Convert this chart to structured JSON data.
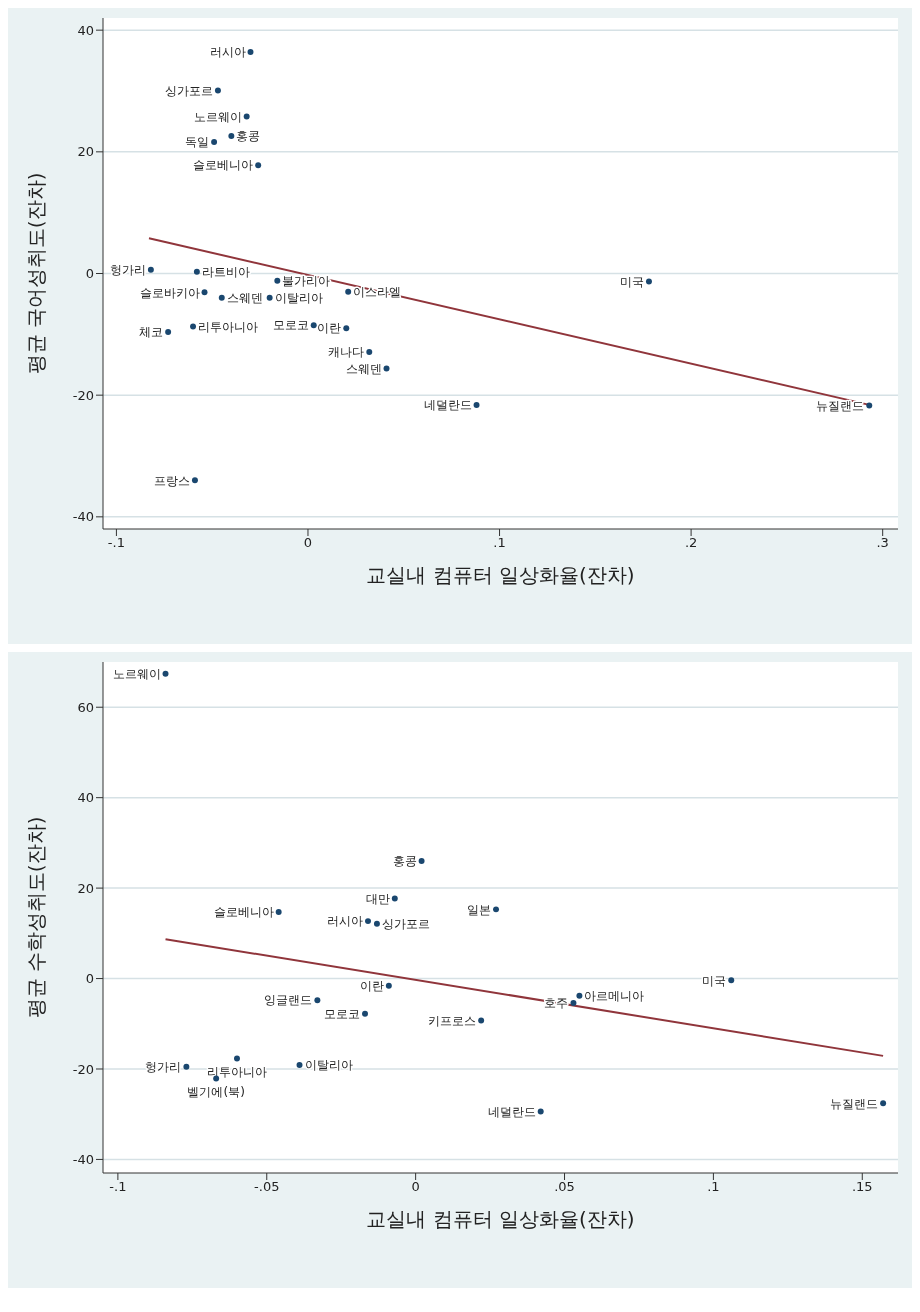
{
  "chart_data": [
    {
      "type": "scatter",
      "xlabel": "교실내 컴퓨터 일상화율(잔차)",
      "ylabel": "평균 국어성취도(잔차)",
      "xlim": [
        -0.107,
        0.308
      ],
      "ylim": [
        -42,
        42
      ],
      "xticks": [
        {
          "value": -0.1,
          "label": "-.1"
        },
        0,
        {
          "value": 0.1,
          "label": ".1"
        },
        {
          "value": 0.2,
          "label": ".2"
        },
        {
          "value": 0.3,
          "label": ".3"
        }
      ],
      "yticks": [
        -40,
        -20,
        0,
        20,
        40
      ],
      "grid": "y",
      "series": [
        {
          "marker": "circle",
          "color": "#1a476f",
          "x": [
            -0.03,
            -0.047,
            -0.032,
            -0.049,
            -0.04,
            -0.026,
            -0.082,
            -0.058,
            -0.016,
            -0.054,
            -0.045,
            -0.02,
            0.021,
            -0.06,
            -0.073,
            0.003,
            0.02,
            0.032,
            0.041,
            0.088,
            0.293,
            0.178,
            -0.059
          ],
          "values": [
            36.4,
            30.1,
            25.8,
            21.6,
            22.6,
            17.8,
            0.6,
            0.3,
            -1.2,
            -3.1,
            -4.0,
            -4.0,
            -3.0,
            -8.7,
            -9.6,
            -8.5,
            -9.0,
            -12.9,
            -15.6,
            -21.6,
            -21.7,
            -1.3,
            -34.0
          ]
        },
        {
          "type": "line",
          "marker": "none",
          "color": "#90353b",
          "x": [
            -0.083,
            0.293
          ],
          "values": [
            5.8,
            -21.6
          ]
        }
      ],
      "annotations": [
        {
          "text": "러시아",
          "x": -0.03,
          "y": 36.4
        },
        {
          "text": "싱가포르",
          "x": -0.047,
          "y": 30.1
        },
        {
          "text": "노르웨이",
          "x": -0.032,
          "y": 25.8
        },
        {
          "text": "독일",
          "x": -0.049,
          "y": 21.6
        },
        {
          "text": "홍콩",
          "x": -0.04,
          "y": 22.6
        },
        {
          "text": "슬로베니아",
          "x": -0.026,
          "y": 17.8
        },
        {
          "text": "헝가리",
          "x": -0.082,
          "y": 0.6
        },
        {
          "text": "라트비아",
          "x": -0.058,
          "y": 0.3
        },
        {
          "text": "불가리아",
          "x": -0.016,
          "y": -1.2
        },
        {
          "text": "슬로바키아",
          "x": -0.054,
          "y": -3.1
        },
        {
          "text": "스웨덴",
          "x": -0.045,
          "y": -4.0
        },
        {
          "text": "이탈리아",
          "x": -0.02,
          "y": -4.0
        },
        {
          "text": "이스라엘",
          "x": 0.021,
          "y": -3.0
        },
        {
          "text": "리투아니아",
          "x": -0.06,
          "y": -8.7
        },
        {
          "text": "체코",
          "x": -0.073,
          "y": -9.6
        },
        {
          "text": "모로코",
          "x": 0.003,
          "y": -8.5
        },
        {
          "text": "이란",
          "x": 0.02,
          "y": -9.0
        },
        {
          "text": "캐나다",
          "x": 0.032,
          "y": -12.9
        },
        {
          "text": "스웨덴",
          "x": 0.041,
          "y": -15.6
        },
        {
          "text": "네덜란드",
          "x": 0.088,
          "y": -21.6
        },
        {
          "text": "뉴질랜드",
          "x": 0.293,
          "y": -21.7
        },
        {
          "text": "미국",
          "x": 0.178,
          "y": -1.3
        },
        {
          "text": "프랑스",
          "x": -0.059,
          "y": -34.0
        }
      ]
    },
    {
      "type": "scatter",
      "xlabel": "교실내 컴퓨터 일상화율(잔차)",
      "ylabel": "평균 수학성취도(잔차)",
      "xlim": [
        -0.105,
        0.162
      ],
      "ylim": [
        -43,
        70
      ],
      "xticks": [
        {
          "value": -0.1,
          "label": "-.1"
        },
        {
          "value": -0.05,
          "label": "-.05"
        },
        0,
        {
          "value": 0.05,
          "label": ".05"
        },
        {
          "value": 0.1,
          "label": ".1"
        },
        {
          "value": 0.15,
          "label": ".15"
        }
      ],
      "yticks": [
        -40,
        -20,
        0,
        20,
        40,
        60
      ],
      "grid": "y",
      "series": [
        {
          "marker": "circle",
          "color": "#1a476f",
          "x": [
            -0.084,
            0.002,
            -0.007,
            -0.046,
            -0.016,
            -0.013,
            0.027,
            0.106,
            -0.009,
            0.055,
            0.053,
            -0.033,
            -0.017,
            0.022,
            -0.06,
            -0.039,
            -0.077,
            -0.067,
            0.042,
            0.157
          ],
          "values": [
            67.4,
            26.0,
            17.7,
            14.7,
            12.7,
            12.1,
            15.3,
            -0.4,
            -1.6,
            -3.8,
            -5.4,
            -4.8,
            -7.8,
            -9.3,
            -17.7,
            -19.1,
            -19.5,
            -22.1,
            -29.4,
            -27.6
          ]
        },
        {
          "type": "line",
          "marker": "none",
          "color": "#90353b",
          "x": [
            -0.084,
            0.157
          ],
          "values": [
            8.7,
            -17.1
          ]
        }
      ],
      "annotations": [
        {
          "text": "노르웨이",
          "x": -0.084,
          "y": 67.4
        },
        {
          "text": "홍콩",
          "x": 0.002,
          "y": 26.0
        },
        {
          "text": "대만",
          "x": -0.007,
          "y": 17.7
        },
        {
          "text": "슬로베니아",
          "x": -0.046,
          "y": 14.7
        },
        {
          "text": "러시아",
          "x": -0.016,
          "y": 12.7
        },
        {
          "text": "싱가포르",
          "x": -0.013,
          "y": 12.1
        },
        {
          "text": "일본",
          "x": 0.027,
          "y": 15.3
        },
        {
          "text": "미국",
          "x": 0.106,
          "y": -0.4
        },
        {
          "text": "이란",
          "x": -0.009,
          "y": -1.6
        },
        {
          "text": "아르메니아",
          "x": 0.055,
          "y": -3.8
        },
        {
          "text": "호주",
          "x": 0.053,
          "y": -5.4
        },
        {
          "text": "잉글랜드",
          "x": -0.033,
          "y": -4.8
        },
        {
          "text": "모로코",
          "x": -0.017,
          "y": -7.8
        },
        {
          "text": "키프로스",
          "x": 0.022,
          "y": -9.3
        },
        {
          "text": "리투아니아",
          "x": -0.06,
          "y": -17.7
        },
        {
          "text": "이탈리아",
          "x": -0.039,
          "y": -19.1
        },
        {
          "text": "헝가리",
          "x": -0.077,
          "y": -19.5
        },
        {
          "text": "벨기에(북)",
          "x": -0.067,
          "y": -22.1
        },
        {
          "text": "네덜란드",
          "x": 0.042,
          "y": -29.4
        },
        {
          "text": "뉴질랜드",
          "x": 0.157,
          "y": -27.6
        }
      ]
    }
  ]
}
